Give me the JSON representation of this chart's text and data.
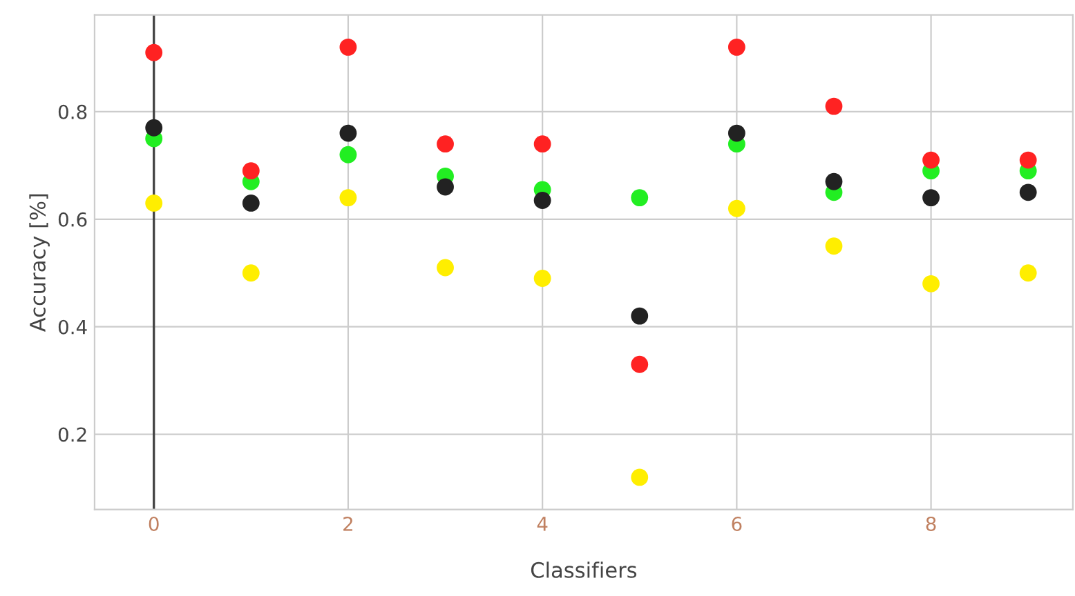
{
  "chart_data": {
    "type": "scatter",
    "xlabel": "Classifiers",
    "ylabel": "Accuracy [%]",
    "x": [
      0,
      1,
      2,
      3,
      4,
      5,
      6,
      7,
      8,
      9
    ],
    "series": [
      {
        "color": "#ffee00",
        "values": [
          0.63,
          0.5,
          0.64,
          0.51,
          0.49,
          0.12,
          0.62,
          0.55,
          0.48,
          0.5
        ]
      },
      {
        "color": "#22ee22",
        "values": [
          0.75,
          0.67,
          0.72,
          0.68,
          0.655,
          0.64,
          0.74,
          0.65,
          0.69,
          0.69
        ]
      },
      {
        "color": "#ff2222",
        "values": [
          0.91,
          0.69,
          0.92,
          0.74,
          0.74,
          0.33,
          0.92,
          0.81,
          0.71,
          0.71
        ]
      },
      {
        "color": "#222222",
        "values": [
          0.77,
          0.63,
          0.76,
          0.66,
          0.635,
          0.42,
          0.76,
          0.67,
          0.64,
          0.65
        ]
      }
    ],
    "xlim": [
      -0.61,
      9.46
    ],
    "ylim": [
      0.06,
      0.98
    ],
    "xticks": [
      0,
      2,
      4,
      6,
      8
    ],
    "yticks": [
      0.2,
      0.4,
      0.6,
      0.8
    ],
    "ref_lines": [
      {
        "axis": "x",
        "value": 0,
        "color": "#444444"
      }
    ],
    "grid": true,
    "marker": "circle"
  }
}
